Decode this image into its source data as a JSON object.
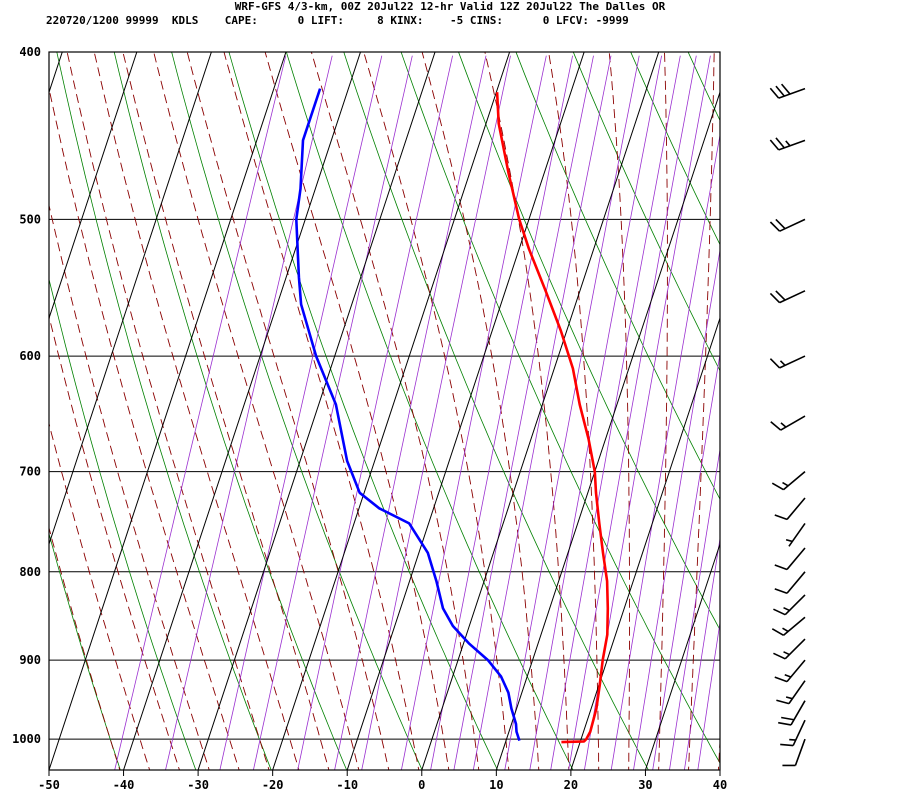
{
  "header": {
    "line1": "WRF-GFS 4/3-km, 00Z 20Jul22 12-hr Valid 12Z 20Jul22 The Dalles OR",
    "line2": "220720/1200 99999  KDLS    CAPE:      0 LIFT:     8 KINX:    -5 CINS:      0 LFCV: -9999"
  },
  "colors": {
    "grid": "#000000",
    "dry_adiabat": "#008000",
    "moist_adiabat": "#8b0000",
    "mixing_ratio": "#9b30d0",
    "temperature": "#ff0000",
    "dewpoint": "#0000ff"
  },
  "chart_data": {
    "type": "skew-t",
    "x_axis": {
      "label": "",
      "ticks": [
        -50,
        -40,
        -30,
        -20,
        -10,
        0,
        10,
        20,
        30,
        40
      ]
    },
    "y_axis": {
      "label": "",
      "ticks": [
        400,
        500,
        600,
        700,
        800,
        900,
        1000
      ],
      "scale": "log",
      "range": [
        1042,
        400
      ]
    },
    "series": [
      {
        "kind": "temperature",
        "points": [
          [
            1004,
            17.5
          ],
          [
            1003,
            20.5
          ],
          [
            1000,
            20.7
          ],
          [
            990,
            20.9
          ],
          [
            960,
            20.7
          ],
          [
            930,
            20.1
          ],
          [
            900,
            19.4
          ],
          [
            870,
            18.9
          ],
          [
            840,
            17.8
          ],
          [
            810,
            16.5
          ],
          [
            780,
            14.7
          ],
          [
            750,
            12.9
          ],
          [
            720,
            11.1
          ],
          [
            700,
            10.0
          ],
          [
            670,
            7.7
          ],
          [
            640,
            5.0
          ],
          [
            610,
            2.5
          ],
          [
            580,
            -0.8
          ],
          [
            550,
            -4.6
          ],
          [
            520,
            -8.7
          ],
          [
            500,
            -11.3
          ],
          [
            470,
            -14.8
          ],
          [
            440,
            -18.3
          ],
          [
            422,
            -19.9
          ]
        ]
      },
      {
        "kind": "dewpoint",
        "points": [
          [
            1002,
            11.8
          ],
          [
            990,
            11.0
          ],
          [
            980,
            10.6
          ],
          [
            960,
            9.3
          ],
          [
            940,
            8.2
          ],
          [
            920,
            6.5
          ],
          [
            900,
            4.0
          ],
          [
            880,
            0.7
          ],
          [
            860,
            -2.2
          ],
          [
            840,
            -4.3
          ],
          [
            810,
            -6.4
          ],
          [
            780,
            -8.8
          ],
          [
            750,
            -12.6
          ],
          [
            735,
            -17.3
          ],
          [
            720,
            -20.6
          ],
          [
            690,
            -23.7
          ],
          [
            640,
            -27.7
          ],
          [
            600,
            -32.5
          ],
          [
            560,
            -36.8
          ],
          [
            540,
            -38.3
          ],
          [
            500,
            -41.2
          ],
          [
            480,
            -42.0
          ],
          [
            450,
            -43.8
          ],
          [
            420,
            -43.8
          ]
        ]
      }
    ],
    "wind_barbs": [
      {
        "pressure": 1000,
        "direction": 200,
        "speed": 10
      },
      {
        "pressure": 975,
        "direction": 205,
        "speed": 15
      },
      {
        "pressure": 950,
        "direction": 210,
        "speed": 20
      },
      {
        "pressure": 925,
        "direction": 215,
        "speed": 15
      },
      {
        "pressure": 900,
        "direction": 220,
        "speed": 15
      },
      {
        "pressure": 875,
        "direction": 225,
        "speed": 15
      },
      {
        "pressure": 850,
        "direction": 230,
        "speed": 15
      },
      {
        "pressure": 825,
        "direction": 225,
        "speed": 15
      },
      {
        "pressure": 800,
        "direction": 220,
        "speed": 10
      },
      {
        "pressure": 775,
        "direction": 220,
        "speed": 10
      },
      {
        "pressure": 750,
        "direction": 215,
        "speed": 5
      },
      {
        "pressure": 725,
        "direction": 220,
        "speed": 10
      },
      {
        "pressure": 700,
        "direction": 230,
        "speed": 15
      },
      {
        "pressure": 650,
        "direction": 240,
        "speed": 15
      },
      {
        "pressure": 600,
        "direction": 245,
        "speed": 15
      },
      {
        "pressure": 550,
        "direction": 245,
        "speed": 20
      },
      {
        "pressure": 500,
        "direction": 245,
        "speed": 20
      },
      {
        "pressure": 450,
        "direction": 250,
        "speed": 25
      },
      {
        "pressure": 420,
        "direction": 250,
        "speed": 30
      }
    ]
  }
}
